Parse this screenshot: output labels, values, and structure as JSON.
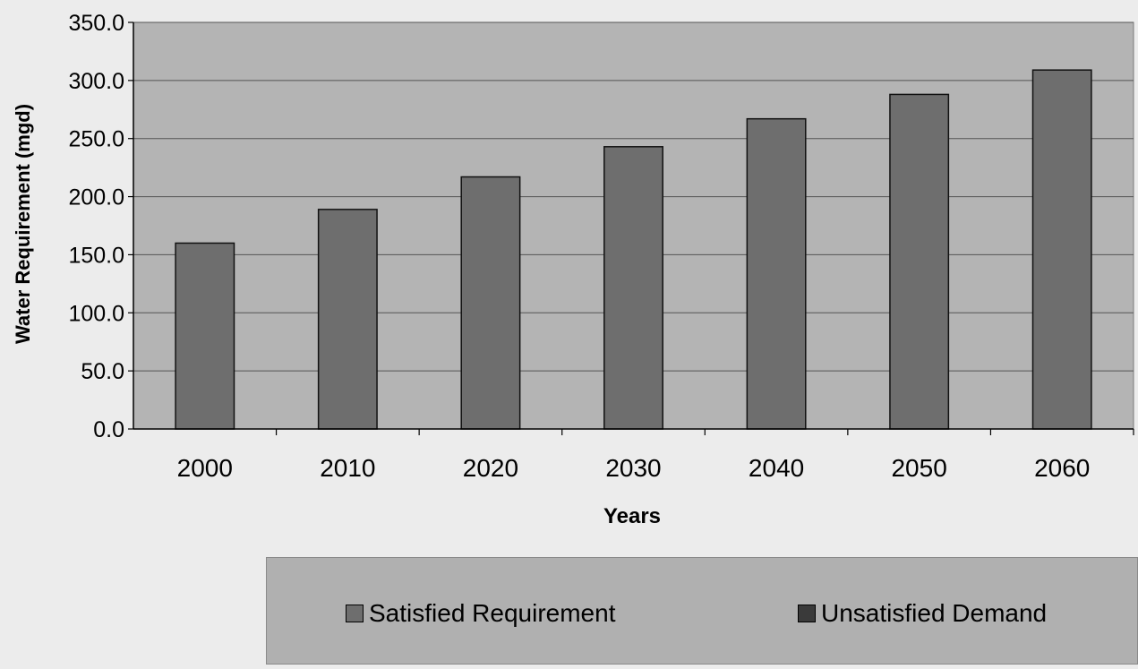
{
  "chart_data": {
    "type": "bar",
    "categories": [
      "2000",
      "2010",
      "2020",
      "2030",
      "2040",
      "2050",
      "2060"
    ],
    "series": [
      {
        "name": "Satisfied Requirement",
        "values": [
          160.0,
          189.0,
          217.0,
          243.0,
          267.0,
          288.0,
          309.0
        ],
        "color": "#6e6e6e"
      },
      {
        "name": "Unsatisfied Demand",
        "values": [
          0,
          0,
          0,
          0,
          0,
          0,
          0
        ],
        "color": "#3a3a3a"
      }
    ],
    "xlabel": "Years",
    "ylabel": "Water Requirement (mgd)",
    "ylim": [
      0,
      350
    ],
    "yticks": [
      "0.0",
      "50.0",
      "100.0",
      "150.0",
      "200.0",
      "250.0",
      "300.0",
      "350.0"
    ],
    "grid": true,
    "legend_position": "bottom",
    "plot_background": "#b4b4b4"
  }
}
